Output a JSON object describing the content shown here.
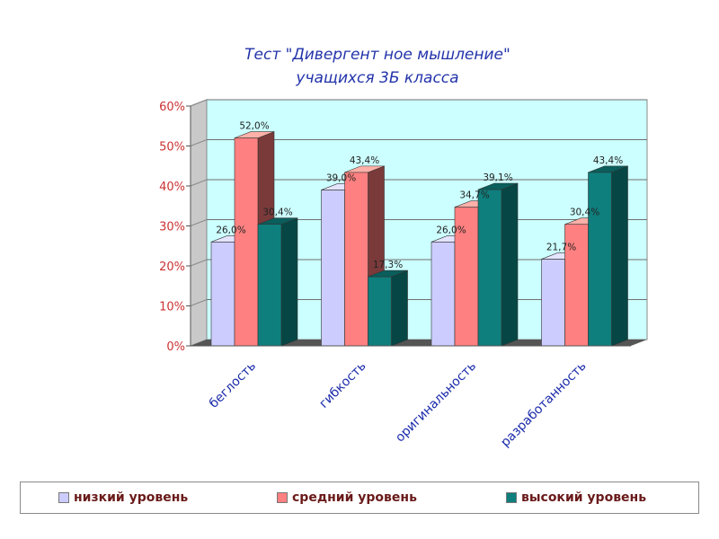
{
  "chart_data": {
    "type": "bar",
    "title_lines": [
      "Тест  \"Дивергент ное мышление\"",
      "учащихся 3Б класса"
    ],
    "categories": [
      "беглость",
      "гибкость",
      "оригинальность",
      "разработанность"
    ],
    "series": [
      {
        "name": "низкий уровень",
        "values": [
          26.0,
          39.0,
          26.0,
          21.7
        ],
        "labels": [
          "26,0%",
          "39,0%",
          "26,0%",
          "21,7%"
        ],
        "color": "#ccccff",
        "side": "#a9a9d8",
        "top": "#e4e4ff"
      },
      {
        "name": "средний уровень",
        "values": [
          52.0,
          43.4,
          34.7,
          30.4
        ],
        "labels": [
          "52,0%",
          "43,4%",
          "34,7%",
          "30,4%"
        ],
        "color": "#ff8080",
        "side": "#7a3a3a",
        "top": "#ffb0a8"
      },
      {
        "name": "высокий уровень",
        "values": [
          30.4,
          17.3,
          39.1,
          43.4
        ],
        "labels": [
          "30,4%",
          "17,3%",
          "39,1%",
          "43,4%"
        ],
        "color": "#0e7f7d",
        "side": "#064745",
        "top": "#0a5e5c"
      }
    ],
    "y_ticks": [
      "0%",
      "10%",
      "20%",
      "30%",
      "40%",
      "50%",
      "60%"
    ],
    "ylim": [
      0,
      60
    ],
    "grid": true,
    "legend_position": "bottom",
    "colors": {
      "wall": "#ccffff",
      "floor": "#555555",
      "title": "#2233aa",
      "tick": "#cc3333",
      "category": "#1a2aaa",
      "legend_text": "#6a1a1a"
    }
  }
}
